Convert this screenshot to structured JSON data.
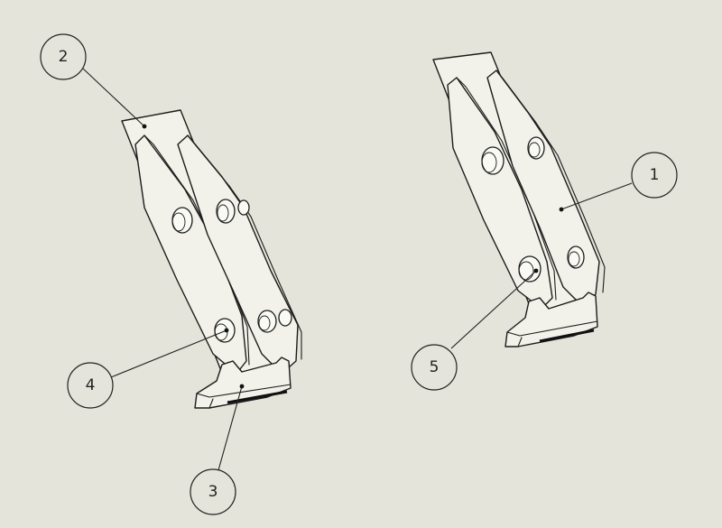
{
  "balloons": [
    {
      "id": "1",
      "label": "1"
    },
    {
      "id": "2",
      "label": "2"
    },
    {
      "id": "3",
      "label": "3"
    },
    {
      "id": "4",
      "label": "4"
    },
    {
      "id": "5",
      "label": "5"
    }
  ],
  "colors": {
    "background": "#e4e4da",
    "line": "#1c1c1c",
    "part_fill": "#f2f2ea"
  }
}
